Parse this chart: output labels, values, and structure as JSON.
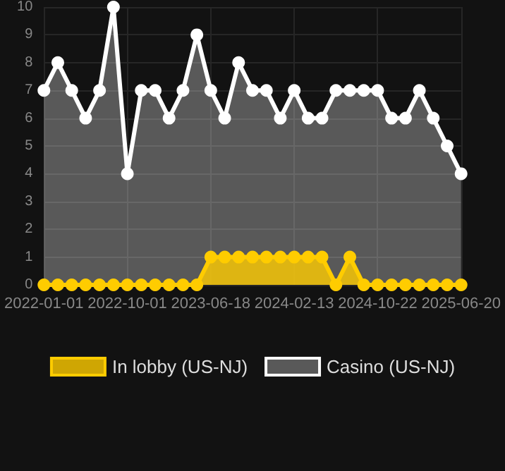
{
  "chart_data": {
    "type": "area",
    "categories": [
      "2022-01-01",
      null,
      null,
      null,
      null,
      null,
      "2022-10-01",
      null,
      null,
      null,
      null,
      null,
      "2023-06-18",
      null,
      null,
      null,
      null,
      null,
      "2024-02-13",
      null,
      null,
      null,
      null,
      null,
      "2024-10-22",
      null,
      null,
      null,
      null,
      null,
      "2025-06-20"
    ],
    "series": [
      {
        "name": "In lobby (US-NJ)",
        "color": "#ffcc00",
        "values": [
          0,
          0,
          0,
          0,
          0,
          0,
          0,
          0,
          0,
          0,
          0,
          0,
          1,
          1,
          1,
          1,
          1,
          1,
          1,
          1,
          1,
          0,
          1,
          0,
          0,
          0,
          0,
          0,
          0,
          0,
          0
        ]
      },
      {
        "name": "Casino (US-NJ)",
        "color": "#ffffff",
        "values": [
          7,
          8,
          7,
          6,
          7,
          10,
          4,
          7,
          7,
          6,
          7,
          9,
          7,
          6,
          8,
          7,
          7,
          6,
          7,
          6,
          6,
          7,
          7,
          7,
          7,
          6,
          6,
          7,
          6,
          5,
          4
        ]
      }
    ],
    "ylim": [
      0,
      10
    ],
    "yticks": [
      0,
      1,
      2,
      3,
      4,
      5,
      6,
      7,
      8,
      9,
      10
    ],
    "grid": true,
    "legend": "bottom",
    "marker": "circle",
    "line_style": "solid"
  }
}
